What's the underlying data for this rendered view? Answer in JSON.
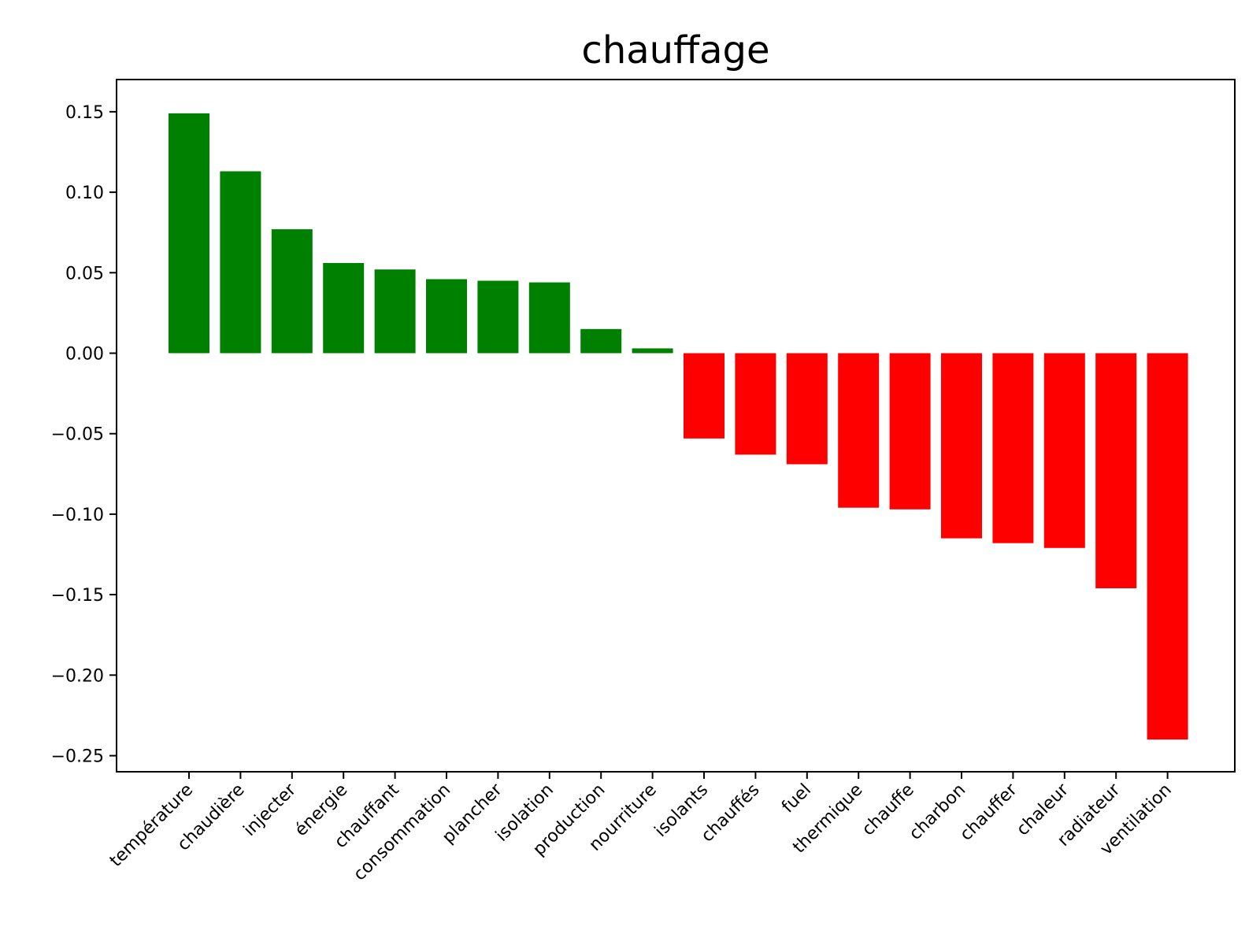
{
  "chart_data": {
    "type": "bar",
    "title": "chauffage",
    "xlabel": "",
    "ylabel": "",
    "categories": [
      "température",
      "chaudière",
      "injecter",
      "énergie",
      "chauffant",
      "consommation",
      "plancher",
      "isolation",
      "production",
      "nourriture",
      "isolants",
      "chauffés",
      "fuel",
      "thermique",
      "chauffe",
      "charbon",
      "chauffer",
      "chaleur",
      "radiateur",
      "ventilation"
    ],
    "values": [
      0.149,
      0.113,
      0.077,
      0.056,
      0.052,
      0.046,
      0.045,
      0.044,
      0.015,
      0.003,
      -0.053,
      -0.063,
      -0.069,
      -0.096,
      -0.097,
      -0.115,
      -0.118,
      -0.121,
      -0.146,
      -0.24
    ],
    "positive_color": "#008000",
    "negative_color": "#ff0000",
    "ylim": [
      -0.26,
      0.17
    ],
    "yticks": [
      0.15,
      0.1,
      0.05,
      0.0,
      -0.05,
      -0.1,
      -0.15,
      -0.2,
      -0.25
    ],
    "ytick_labels": [
      "0.15",
      "0.10",
      "0.05",
      "0.00",
      "−0.05",
      "−0.10",
      "−0.15",
      "−0.20",
      "−0.25"
    ],
    "grid": false,
    "legend": "none"
  }
}
